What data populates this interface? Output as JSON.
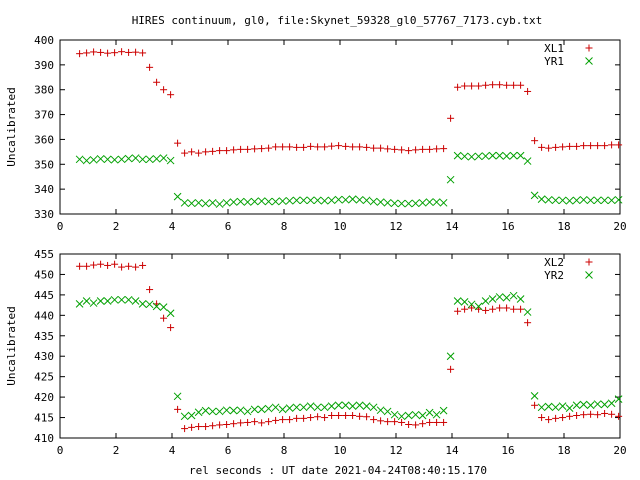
{
  "title": "HIRES continuum, gl0, file:Skynet_59328_gl0_57767_7173.cyb.txt",
  "xlabel": "rel seconds : UT date 2021-04-24T08:40:15.170",
  "chart_data": [
    {
      "type": "scatter",
      "ylabel": "Uncalibrated",
      "xlim": [
        0,
        20
      ],
      "ylim": [
        330,
        400
      ],
      "xticks": [
        0,
        2,
        4,
        6,
        8,
        10,
        12,
        14,
        16,
        18,
        20
      ],
      "yticks": [
        330,
        340,
        350,
        360,
        370,
        380,
        390,
        400
      ],
      "legend": "top-right",
      "series": [
        {
          "name": "XL1",
          "marker": "plus",
          "color": "#cc0000",
          "x": [
            0.7,
            0.95,
            1.2,
            1.45,
            1.7,
            1.95,
            2.2,
            2.45,
            2.7,
            2.95,
            3.2,
            3.45,
            3.7,
            3.95,
            4.2,
            4.45,
            4.7,
            4.95,
            5.2,
            5.45,
            5.7,
            5.95,
            6.2,
            6.45,
            6.7,
            6.95,
            7.2,
            7.45,
            7.7,
            7.95,
            8.2,
            8.45,
            8.7,
            8.95,
            9.2,
            9.45,
            9.7,
            9.95,
            10.2,
            10.45,
            10.7,
            10.95,
            11.2,
            11.45,
            11.7,
            11.95,
            12.2,
            12.45,
            12.7,
            12.95,
            13.2,
            13.45,
            13.7,
            13.95,
            14.2,
            14.45,
            14.7,
            14.95,
            15.2,
            15.45,
            15.7,
            15.95,
            16.2,
            16.45,
            16.7,
            16.95,
            17.2,
            17.45,
            17.7,
            17.95,
            18.2,
            18.45,
            18.7,
            18.95,
            19.2,
            19.45,
            19.7,
            19.95
          ],
          "y": [
            394.5,
            394.8,
            395.2,
            395.0,
            394.7,
            394.9,
            395.3,
            395.0,
            395.1,
            394.8,
            389,
            383,
            380,
            378,
            358.5,
            354.5,
            355,
            354.5,
            355,
            355.2,
            355.5,
            355.5,
            355.8,
            356,
            356,
            356.2,
            356.3,
            356.5,
            357,
            357,
            357,
            356.8,
            356.8,
            357.2,
            357,
            357,
            357.3,
            357.5,
            357.2,
            357,
            357,
            356.8,
            356.5,
            356.5,
            356.2,
            356,
            355.8,
            355.5,
            355.8,
            356,
            356,
            356.2,
            356.3,
            368.5,
            381,
            381.5,
            381.5,
            381.5,
            381.8,
            382,
            382,
            381.8,
            381.8,
            381.8,
            379.3,
            359.5,
            356.8,
            356.5,
            356.8,
            357,
            357.2,
            357.2,
            357.5,
            357.5,
            357.5,
            357.5,
            357.8,
            357.8
          ]
        },
        {
          "name": "YR1",
          "marker": "cross",
          "color": "#00a000",
          "x": [
            0.7,
            0.95,
            1.2,
            1.45,
            1.7,
            1.95,
            2.2,
            2.45,
            2.7,
            2.95,
            3.2,
            3.45,
            3.7,
            3.95,
            4.2,
            4.45,
            4.7,
            4.95,
            5.2,
            5.45,
            5.7,
            5.95,
            6.2,
            6.45,
            6.7,
            6.95,
            7.2,
            7.45,
            7.7,
            7.95,
            8.2,
            8.45,
            8.7,
            8.95,
            9.2,
            9.45,
            9.7,
            9.95,
            10.2,
            10.45,
            10.7,
            10.95,
            11.2,
            11.45,
            11.7,
            11.95,
            12.2,
            12.45,
            12.7,
            12.95,
            13.2,
            13.45,
            13.7,
            13.95,
            14.2,
            14.45,
            14.7,
            14.95,
            15.2,
            15.45,
            15.7,
            15.95,
            16.2,
            16.45,
            16.7,
            16.95,
            17.2,
            17.45,
            17.7,
            17.95,
            18.2,
            18.45,
            18.7,
            18.95,
            19.2,
            19.45,
            19.7,
            19.95
          ],
          "y": [
            352,
            351.5,
            351.8,
            352.2,
            352,
            351.8,
            352,
            352.3,
            352.5,
            352,
            352,
            352.2,
            352.5,
            351.5,
            337,
            334.5,
            334.3,
            334.5,
            334.2,
            334.5,
            334,
            334.5,
            334.8,
            335,
            334.8,
            335,
            335.2,
            335,
            335,
            335.2,
            335.3,
            335.5,
            335.5,
            335.5,
            335.5,
            335.3,
            335.5,
            335.8,
            335.7,
            336,
            335.7,
            335.5,
            335,
            334.8,
            334.5,
            334.3,
            334.2,
            334.2,
            334.3,
            334.5,
            334.8,
            334.8,
            334.5,
            343.8,
            353.5,
            353.2,
            353,
            353.2,
            353.3,
            353.5,
            353.5,
            353.3,
            353.5,
            353.5,
            351.3,
            337.5,
            336,
            335.7,
            335.5,
            335.5,
            335.3,
            335.5,
            335.7,
            335.5,
            335.5,
            335.5,
            335.5,
            335.7
          ]
        }
      ]
    },
    {
      "type": "scatter",
      "ylabel": "Uncalibrated",
      "xlim": [
        0,
        20
      ],
      "ylim": [
        410,
        455
      ],
      "xticks": [
        0,
        2,
        4,
        6,
        8,
        10,
        12,
        14,
        16,
        18,
        20
      ],
      "yticks": [
        410,
        415,
        420,
        425,
        430,
        435,
        440,
        445,
        450,
        455
      ],
      "legend": "top-right",
      "series": [
        {
          "name": "XL2",
          "marker": "plus",
          "color": "#cc0000",
          "x": [
            0.7,
            0.95,
            1.2,
            1.45,
            1.7,
            1.95,
            2.2,
            2.45,
            2.7,
            2.95,
            3.2,
            3.45,
            3.7,
            3.95,
            4.2,
            4.45,
            4.7,
            4.95,
            5.2,
            5.45,
            5.7,
            5.95,
            6.2,
            6.45,
            6.7,
            6.95,
            7.2,
            7.45,
            7.7,
            7.95,
            8.2,
            8.45,
            8.7,
            8.95,
            9.2,
            9.45,
            9.7,
            9.95,
            10.2,
            10.45,
            10.7,
            10.95,
            11.2,
            11.45,
            11.7,
            11.95,
            12.2,
            12.45,
            12.7,
            12.95,
            13.2,
            13.45,
            13.7,
            13.95,
            14.2,
            14.45,
            14.7,
            14.95,
            15.2,
            15.45,
            15.7,
            15.95,
            16.2,
            16.45,
            16.7,
            16.95,
            17.2,
            17.45,
            17.7,
            17.95,
            18.2,
            18.45,
            18.7,
            18.95,
            19.2,
            19.45,
            19.7,
            19.95
          ],
          "y": [
            452,
            452,
            452.3,
            452.5,
            452.2,
            452.5,
            451.8,
            452,
            451.8,
            452.2,
            446.3,
            442.8,
            439.3,
            437,
            417,
            412.3,
            412.6,
            412.8,
            412.8,
            413,
            413.2,
            413.3,
            413.5,
            413.7,
            413.8,
            414,
            413.7,
            414,
            414.3,
            414.5,
            414.5,
            414.8,
            414.8,
            415,
            415.2,
            415,
            415.5,
            415.5,
            415.5,
            415.5,
            415.3,
            415.2,
            414.5,
            414.2,
            414,
            414,
            413.8,
            413.3,
            413.2,
            413.5,
            413.8,
            413.8,
            413.8,
            426.8,
            441,
            441.5,
            441.8,
            441.5,
            441.2,
            441.5,
            441.8,
            441.8,
            441.5,
            441.5,
            438.2,
            418,
            415,
            414.5,
            414.8,
            415,
            415.3,
            415.5,
            415.7,
            415.8,
            415.7,
            416,
            415.8,
            415.3
          ]
        },
        {
          "name": "YR2",
          "marker": "cross",
          "color": "#00a000",
          "x": [
            0.7,
            0.95,
            1.2,
            1.45,
            1.7,
            1.95,
            2.2,
            2.45,
            2.7,
            2.95,
            3.2,
            3.45,
            3.7,
            3.95,
            4.2,
            4.45,
            4.7,
            4.95,
            5.2,
            5.45,
            5.7,
            5.95,
            6.2,
            6.45,
            6.7,
            6.95,
            7.2,
            7.45,
            7.7,
            7.95,
            8.2,
            8.45,
            8.7,
            8.95,
            9.2,
            9.45,
            9.7,
            9.95,
            10.2,
            10.45,
            10.7,
            10.95,
            11.2,
            11.45,
            11.7,
            11.95,
            12.2,
            12.45,
            12.7,
            12.95,
            13.2,
            13.45,
            13.7,
            13.95,
            14.2,
            14.45,
            14.7,
            14.95,
            15.2,
            15.45,
            15.7,
            15.95,
            16.2,
            16.45,
            16.7,
            16.95,
            17.2,
            17.45,
            17.7,
            17.95,
            18.2,
            18.45,
            18.7,
            18.95,
            19.2,
            19.45,
            19.7,
            19.95
          ],
          "y": [
            442.8,
            443.5,
            443,
            443.5,
            443.5,
            443.8,
            443.8,
            443.8,
            443.5,
            442.8,
            442.7,
            442.2,
            442,
            440.5,
            420.2,
            415.3,
            415.5,
            416.3,
            416.7,
            416.5,
            416.5,
            416.8,
            416.7,
            416.8,
            416.5,
            417,
            417,
            417.2,
            417.5,
            417,
            417.3,
            417.5,
            417.5,
            417.8,
            417.5,
            417.5,
            417.8,
            418,
            418,
            417.8,
            418,
            417.8,
            417.5,
            416.8,
            416.5,
            415.7,
            415.3,
            415.5,
            415.7,
            415.5,
            416.2,
            415.7,
            416.7,
            430,
            443.5,
            443.3,
            442.7,
            442.2,
            443.5,
            444,
            444.5,
            444.3,
            444.8,
            444,
            440.8,
            420.3,
            417.5,
            417.7,
            417.5,
            417.8,
            417.3,
            418,
            418.2,
            418,
            418.3,
            418.2,
            418.5,
            419.5
          ]
        }
      ]
    }
  ]
}
